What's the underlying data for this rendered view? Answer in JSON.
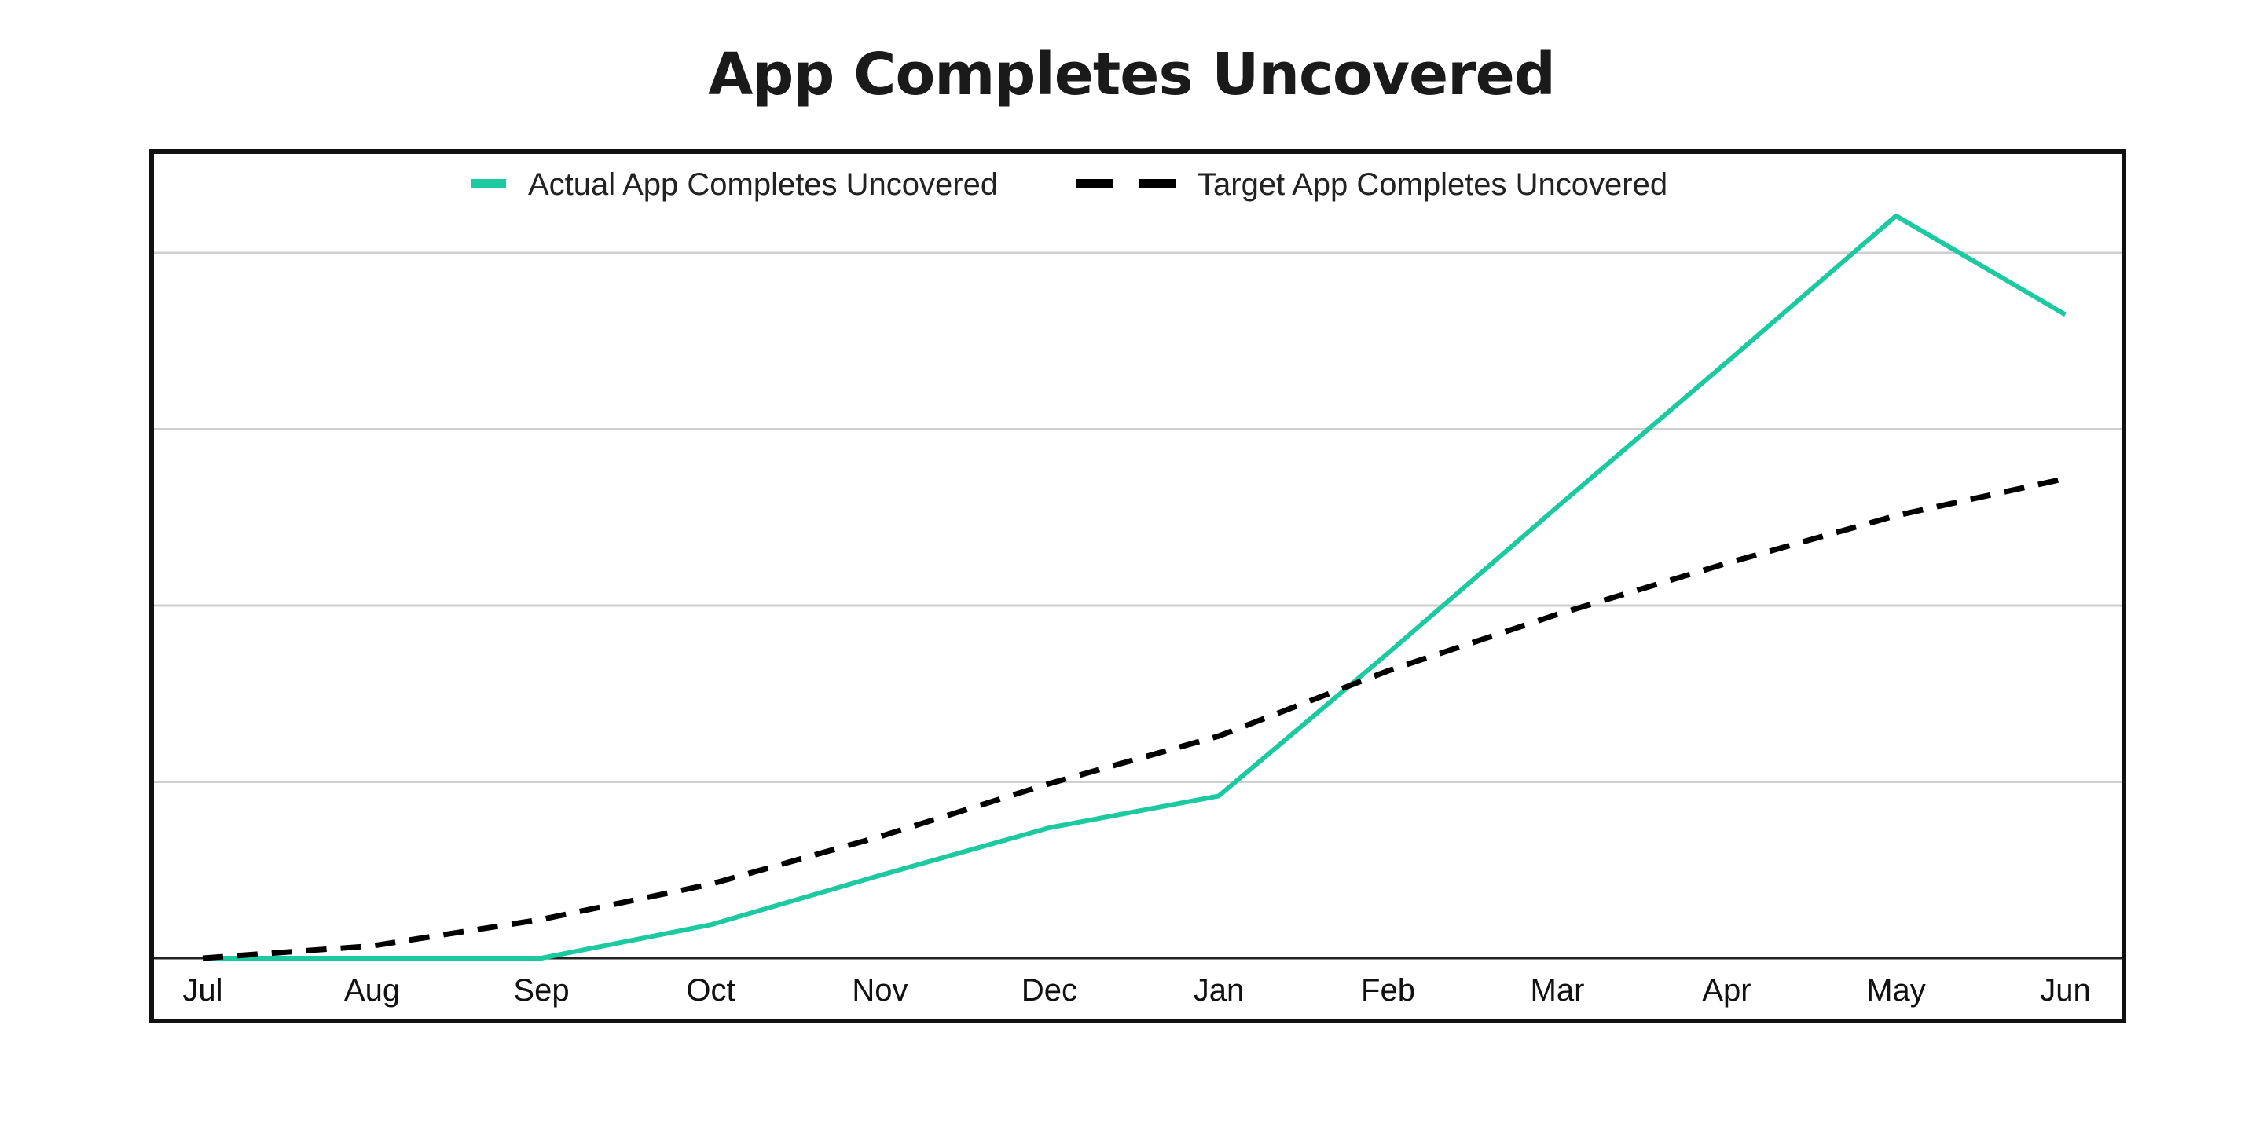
{
  "chart_data": {
    "type": "line",
    "title": "App Completes Uncovered",
    "xlabel": "",
    "ylabel": "",
    "categories": [
      "Jul",
      "Aug",
      "Sep",
      "Oct",
      "Nov",
      "Dec",
      "Jan",
      "Feb",
      "Mar",
      "Apr",
      "May",
      "Jun"
    ],
    "ylim": [
      0,
      4
    ],
    "grid": true,
    "y_ticks_shown": false,
    "legend_position": "top-center",
    "series": [
      {
        "name": "Actual App Completes Uncovered",
        "color": "#1cc9a0",
        "style": "solid",
        "values": [
          0,
          0,
          0,
          0.19,
          0.47,
          0.74,
          0.92,
          1.73,
          2.56,
          3.38,
          4.21,
          3.65
        ]
      },
      {
        "name": "Target App Completes Uncovered",
        "color": "#000000",
        "style": "dashed",
        "values": [
          0,
          0.07,
          0.22,
          0.42,
          0.69,
          0.99,
          1.26,
          1.63,
          1.95,
          2.24,
          2.51,
          2.72
        ]
      }
    ]
  }
}
